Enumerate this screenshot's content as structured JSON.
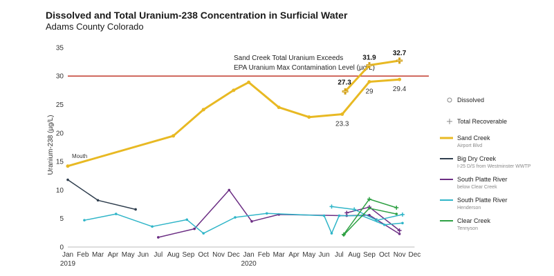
{
  "header": {
    "title": "Dissolved and Total Uranium-238 Concentration in Surficial Water",
    "subtitle": "Adams County Colorado"
  },
  "chart_data": {
    "type": "line",
    "title": "Dissolved and Total Uranium-238 Concentration in Surficial Water",
    "subtitle": "Adams County Colorado",
    "ylabel": "Uranium-238 (µg/L)",
    "ylim": [
      0,
      35
    ],
    "yticks": [
      0,
      5,
      10,
      15,
      20,
      25,
      30,
      35
    ],
    "x_ticks": [
      "Jan",
      "Feb",
      "Mar",
      "Apr",
      "May",
      "Jun",
      "Jul",
      "Aug",
      "Sep",
      "Oct",
      "Nov",
      "Dec",
      "Jan",
      "Feb",
      "Mar",
      "Apr",
      "May",
      "Jun",
      "Jul",
      "Aug",
      "Sep",
      "Oct",
      "Nov",
      "Dec"
    ],
    "x_years": [
      {
        "label": "2019",
        "index": 0
      },
      {
        "label": "2020",
        "index": 12
      }
    ],
    "reference_line": {
      "value": 30,
      "color": "#c0392b"
    },
    "annotation": {
      "line1": "Sand Creek Total Uranium Exceeds",
      "line2": "EPA Uranium Max Contamination Level (µg/L)"
    },
    "mouth_label": "Mouth",
    "series": [
      {
        "name": "Sand Creek",
        "subtitle": "Airport Blvd",
        "color": "#e8b923",
        "width": 3,
        "kind": "dissolved",
        "points": [
          [
            0,
            14.2
          ],
          [
            7,
            19.5
          ],
          [
            9,
            24.1
          ],
          [
            11,
            27.5
          ],
          [
            12,
            28.9
          ],
          [
            14,
            24.5
          ],
          [
            16,
            22.8
          ],
          [
            18.2,
            23.3
          ],
          [
            20,
            29.0
          ],
          [
            22,
            29.4
          ]
        ],
        "labels": [
          {
            "index": 7,
            "text": "23.3",
            "pos": "below"
          },
          {
            "index": 8,
            "text": "29",
            "pos": "below"
          },
          {
            "index": 9,
            "text": "29.4",
            "pos": "below"
          }
        ]
      },
      {
        "name": "Sand Creek Total Recoverable",
        "color": "#e8b923",
        "width": 3,
        "kind": "total",
        "points": [
          [
            18.4,
            27.3
          ],
          [
            20,
            31.9
          ],
          [
            22,
            32.7
          ]
        ],
        "labels": [
          {
            "index": 0,
            "text": "27.3",
            "pos": "above-left"
          },
          {
            "index": 1,
            "text": "31.9",
            "pos": "above"
          },
          {
            "index": 2,
            "text": "32.7",
            "pos": "above"
          }
        ]
      },
      {
        "name": "Big Dry Creek",
        "subtitle": "I-25 D/S from Westminster WWTP",
        "color": "#2f3e4e",
        "width": 1.5,
        "kind": "dissolved",
        "points": [
          [
            0,
            11.8
          ],
          [
            2,
            8.2
          ],
          [
            4.5,
            6.6
          ]
        ]
      },
      {
        "name": "South Platte River",
        "subtitle": "below Clear Creek",
        "color": "#6b2d83",
        "width": 1.5,
        "kind": "dissolved",
        "points": [
          [
            6,
            1.7
          ],
          [
            8.4,
            3.2
          ],
          [
            10.7,
            10.0
          ],
          [
            12.2,
            4.5
          ],
          [
            14,
            5.7
          ],
          [
            18.5,
            5.5
          ],
          [
            20,
            5.6
          ],
          [
            22,
            2.3
          ]
        ]
      },
      {
        "name": "South Platte River Total",
        "color": "#6b2d83",
        "width": 1.5,
        "kind": "total",
        "points": [
          [
            18.5,
            6.0
          ],
          [
            20,
            7.0
          ],
          [
            22,
            2.9
          ]
        ]
      },
      {
        "name": "South Platte River",
        "subtitle": "Henderson",
        "color": "#2fb5c8",
        "width": 1.5,
        "kind": "dissolved",
        "points": [
          [
            1.1,
            4.7
          ],
          [
            3.2,
            5.8
          ],
          [
            5.6,
            3.6
          ],
          [
            7.9,
            4.8
          ],
          [
            9,
            2.4
          ],
          [
            11.1,
            5.2
          ],
          [
            13.2,
            5.9
          ],
          [
            17,
            5.5
          ],
          [
            17.5,
            2.4
          ],
          [
            18,
            5.5
          ],
          [
            19.5,
            5.5
          ],
          [
            21,
            3.9
          ],
          [
            22.2,
            4.2
          ]
        ]
      },
      {
        "name": "South Platte River Henderson Total",
        "color": "#2fb5c8",
        "width": 1.5,
        "kind": "total",
        "points": [
          [
            17.5,
            7.1
          ],
          [
            19,
            6.6
          ],
          [
            20.5,
            4.7
          ],
          [
            22.2,
            5.7
          ]
        ]
      },
      {
        "name": "Clear Creek",
        "subtitle": "Tennyson",
        "color": "#2ea043",
        "width": 1.5,
        "kind": "dissolved",
        "points": [
          [
            18.3,
            2.1
          ],
          [
            20,
            6.8
          ],
          [
            21.8,
            5.8
          ]
        ]
      },
      {
        "name": "Clear Creek Total",
        "color": "#2ea043",
        "width": 1.5,
        "kind": "total",
        "points": [
          [
            18.3,
            2.2
          ],
          [
            20,
            8.4
          ],
          [
            21.8,
            6.9
          ]
        ]
      }
    ],
    "legend": [
      {
        "type": "symbol-circle",
        "label": "Dissolved"
      },
      {
        "type": "symbol-plus",
        "label": "Total Recoverable"
      },
      {
        "type": "line",
        "label": "Sand Creek",
        "sub": "Airport Blvd",
        "color": "#e8b923",
        "thick": true
      },
      {
        "type": "line",
        "label": "Big Dry Creek",
        "sub": "I-25 D/S from Westminster WWTP",
        "color": "#2f3e4e"
      },
      {
        "type": "line",
        "label": "South Platte River",
        "sub": "below Clear Creek",
        "color": "#6b2d83"
      },
      {
        "type": "line",
        "label": "South Platte River",
        "sub": "Henderson",
        "color": "#2fb5c8"
      },
      {
        "type": "line",
        "label": "Clear Creek",
        "sub": "Tennyson",
        "color": "#2ea043"
      }
    ]
  }
}
